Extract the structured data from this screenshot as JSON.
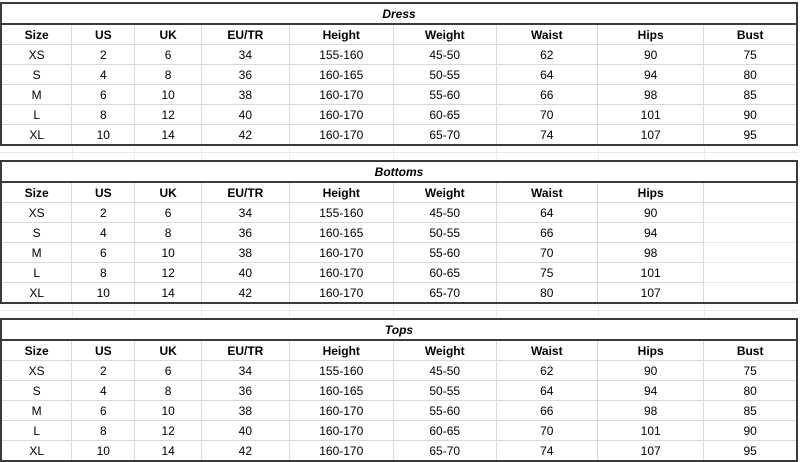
{
  "page": {
    "background": "#ffffff"
  },
  "colors": {
    "thick_border": "#3a3a3a",
    "grid_line": "#d9d9d9",
    "faint_grid_line": "#ececec",
    "text": "#000000"
  },
  "tables": [
    {
      "title": "Dress",
      "columns": [
        "Size",
        "US",
        "UK",
        "EU/TR",
        "Height",
        "Weight",
        "Waist",
        "Hips",
        "Bust"
      ],
      "rows": [
        [
          "XS",
          "2",
          "6",
          "34",
          "155-160",
          "45-50",
          "62",
          "90",
          "75"
        ],
        [
          "S",
          "4",
          "8",
          "36",
          "160-165",
          "50-55",
          "64",
          "94",
          "80"
        ],
        [
          "M",
          "6",
          "10",
          "38",
          "160-170",
          "55-60",
          "66",
          "98",
          "85"
        ],
        [
          "L",
          "8",
          "12",
          "40",
          "160-170",
          "60-65",
          "70",
          "101",
          "90"
        ],
        [
          "XL",
          "10",
          "14",
          "42",
          "160-170",
          "65-70",
          "74",
          "107",
          "95"
        ]
      ]
    },
    {
      "title": "Bottoms",
      "columns": [
        "Size",
        "US",
        "UK",
        "EU/TR",
        "Height",
        "Weight",
        "Waist",
        "Hips",
        ""
      ],
      "rows": [
        [
          "XS",
          "2",
          "6",
          "34",
          "155-160",
          "45-50",
          "64",
          "90",
          ""
        ],
        [
          "S",
          "4",
          "8",
          "36",
          "160-165",
          "50-55",
          "66",
          "94",
          ""
        ],
        [
          "M",
          "6",
          "10",
          "38",
          "160-170",
          "55-60",
          "70",
          "98",
          ""
        ],
        [
          "L",
          "8",
          "12",
          "40",
          "160-170",
          "60-65",
          "75",
          "101",
          ""
        ],
        [
          "XL",
          "10",
          "14",
          "42",
          "160-170",
          "65-70",
          "80",
          "107",
          ""
        ]
      ]
    },
    {
      "title": "Tops",
      "columns": [
        "Size",
        "US",
        "UK",
        "EU/TR",
        "Height",
        "Weight",
        "Waist",
        "Hips",
        "Bust"
      ],
      "rows": [
        [
          "XS",
          "2",
          "6",
          "34",
          "155-160",
          "45-50",
          "62",
          "90",
          "75"
        ],
        [
          "S",
          "4",
          "8",
          "36",
          "160-165",
          "50-55",
          "64",
          "94",
          "80"
        ],
        [
          "M",
          "6",
          "10",
          "38",
          "160-170",
          "55-60",
          "66",
          "98",
          "85"
        ],
        [
          "L",
          "8",
          "12",
          "40",
          "160-170",
          "60-65",
          "70",
          "101",
          "90"
        ],
        [
          "XL",
          "10",
          "14",
          "42",
          "160-170",
          "65-70",
          "74",
          "107",
          "95"
        ]
      ]
    }
  ],
  "column_widths_pct": [
    8.9,
    7.9,
    8.4,
    11.0,
    13.1,
    12.9,
    12.75,
    13.35,
    11.7
  ]
}
